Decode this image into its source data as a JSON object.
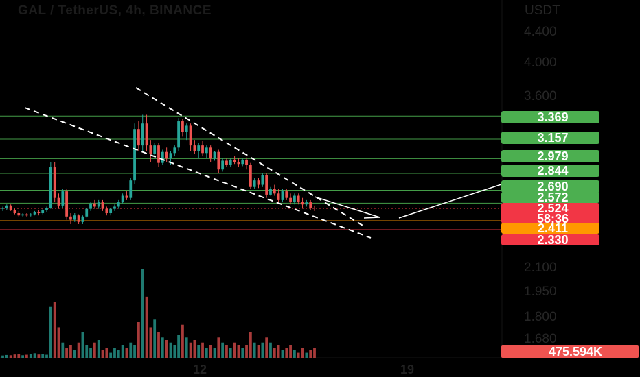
{
  "chart_data": {
    "type": "candlestick",
    "title": "GAL / TetherUS, 4h, BINANCE",
    "currency_label": "USDT",
    "y_ticks": [
      "4.400",
      "4.000",
      "3.600",
      "2.100",
      "1.950",
      "1.800",
      "1.680"
    ],
    "x_ticks": [
      "12",
      "19"
    ],
    "levels": [
      {
        "label": "3.369",
        "value": 3.369,
        "color": "#4caf50"
      },
      {
        "label": "3.157",
        "value": 3.157,
        "color": "#4caf50"
      },
      {
        "label": "2.979",
        "value": 2.979,
        "color": "#4caf50"
      },
      {
        "label": "2.844",
        "value": 2.844,
        "color": "#4caf50"
      },
      {
        "label": "2.690",
        "value": 2.69,
        "color": "#4caf50"
      },
      {
        "label": "2.572",
        "value": 2.572,
        "color": "#4caf50"
      },
      {
        "label": "2.411",
        "value": 2.411,
        "color": "#ff9800"
      },
      {
        "label": "2.330",
        "value": 2.33,
        "color": "#f23645"
      }
    ],
    "last_price": {
      "label": "2.524",
      "value": 2.524,
      "countdown": "58:36",
      "color": "#f23645"
    },
    "volume_label": "475.594K",
    "colors": {
      "up": "#26a69a",
      "down": "#ef5350",
      "up_volume": "#1f7a71",
      "down_volume": "#a83b3a"
    },
    "candles": [
      [
        2.52,
        2.54,
        2.5,
        2.53
      ],
      [
        2.53,
        2.56,
        2.51,
        2.55
      ],
      [
        2.55,
        2.56,
        2.5,
        2.51
      ],
      [
        2.51,
        2.52,
        2.47,
        2.48
      ],
      [
        2.48,
        2.5,
        2.45,
        2.46
      ],
      [
        2.46,
        2.48,
        2.45,
        2.47
      ],
      [
        2.47,
        2.48,
        2.45,
        2.46
      ],
      [
        2.46,
        2.48,
        2.45,
        2.47
      ],
      [
        2.47,
        2.5,
        2.46,
        2.49
      ],
      [
        2.49,
        2.51,
        2.46,
        2.48
      ],
      [
        2.48,
        2.52,
        2.47,
        2.51
      ],
      [
        2.51,
        2.54,
        2.49,
        2.53
      ],
      [
        2.53,
        2.95,
        2.52,
        2.9
      ],
      [
        2.9,
        2.95,
        2.58,
        2.62
      ],
      [
        2.62,
        2.66,
        2.52,
        2.55
      ],
      [
        2.55,
        2.7,
        2.53,
        2.68
      ],
      [
        2.68,
        2.7,
        2.42,
        2.45
      ],
      [
        2.45,
        2.48,
        2.38,
        2.42
      ],
      [
        2.42,
        2.48,
        2.4,
        2.46
      ],
      [
        2.46,
        2.47,
        2.38,
        2.4
      ],
      [
        2.4,
        2.46,
        2.38,
        2.45
      ],
      [
        2.45,
        2.53,
        2.44,
        2.52
      ],
      [
        2.52,
        2.58,
        2.5,
        2.57
      ],
      [
        2.57,
        2.6,
        2.52,
        2.54
      ],
      [
        2.54,
        2.6,
        2.52,
        2.58
      ],
      [
        2.58,
        2.6,
        2.5,
        2.52
      ],
      [
        2.52,
        2.54,
        2.46,
        2.48
      ],
      [
        2.48,
        2.53,
        2.46,
        2.52
      ],
      [
        2.52,
        2.56,
        2.5,
        2.54
      ],
      [
        2.54,
        2.6,
        2.52,
        2.58
      ],
      [
        2.58,
        2.66,
        2.57,
        2.64
      ],
      [
        2.64,
        2.68,
        2.6,
        2.62
      ],
      [
        2.62,
        2.8,
        2.6,
        2.78
      ],
      [
        2.78,
        3.3,
        2.75,
        3.25
      ],
      [
        3.25,
        3.32,
        3.05,
        3.1
      ],
      [
        3.1,
        3.38,
        3.05,
        3.3
      ],
      [
        3.3,
        3.38,
        3.05,
        3.1
      ],
      [
        3.1,
        3.15,
        2.95,
        3.02
      ],
      [
        3.02,
        3.12,
        2.98,
        3.1
      ],
      [
        3.1,
        3.12,
        2.9,
        2.94
      ],
      [
        2.94,
        3.06,
        2.92,
        3.04
      ],
      [
        3.04,
        3.08,
        2.95,
        2.98
      ],
      [
        2.98,
        3.05,
        2.92,
        3.03
      ],
      [
        3.03,
        3.1,
        3.0,
        3.08
      ],
      [
        3.08,
        3.35,
        3.05,
        3.32
      ],
      [
        3.32,
        3.34,
        3.18,
        3.22
      ],
      [
        3.22,
        3.3,
        3.15,
        3.28
      ],
      [
        3.28,
        3.3,
        3.05,
        3.1
      ],
      [
        3.1,
        3.15,
        3.02,
        3.05
      ],
      [
        3.05,
        3.12,
        2.98,
        3.1
      ],
      [
        3.1,
        3.14,
        3.0,
        3.03
      ],
      [
        3.03,
        3.1,
        2.98,
        3.08
      ],
      [
        3.08,
        3.1,
        2.95,
        2.98
      ],
      [
        2.98,
        3.05,
        2.96,
        3.04
      ],
      [
        3.04,
        3.06,
        2.85,
        2.88
      ],
      [
        2.88,
        2.98,
        2.86,
        2.96
      ],
      [
        2.96,
        2.98,
        2.9,
        2.92
      ],
      [
        2.92,
        2.98,
        2.9,
        2.97
      ],
      [
        2.97,
        3.0,
        2.93,
        2.95
      ],
      [
        2.95,
        2.98,
        2.9,
        2.93
      ],
      [
        2.93,
        2.98,
        2.91,
        2.97
      ],
      [
        2.97,
        2.99,
        2.88,
        2.92
      ],
      [
        2.92,
        2.94,
        2.7,
        2.72
      ],
      [
        2.72,
        2.8,
        2.7,
        2.78
      ],
      [
        2.78,
        2.8,
        2.71,
        2.74
      ],
      [
        2.74,
        2.85,
        2.72,
        2.83
      ],
      [
        2.83,
        2.85,
        2.62,
        2.65
      ],
      [
        2.65,
        2.72,
        2.64,
        2.7
      ],
      [
        2.7,
        2.74,
        2.64,
        2.66
      ],
      [
        2.66,
        2.7,
        2.58,
        2.6
      ],
      [
        2.6,
        2.7,
        2.58,
        2.68
      ],
      [
        2.68,
        2.7,
        2.6,
        2.62
      ],
      [
        2.62,
        2.66,
        2.56,
        2.58
      ],
      [
        2.58,
        2.66,
        2.56,
        2.64
      ],
      [
        2.64,
        2.66,
        2.56,
        2.58
      ],
      [
        2.58,
        2.62,
        2.53,
        2.56
      ],
      [
        2.56,
        2.6,
        2.54,
        2.58
      ],
      [
        2.58,
        2.6,
        2.51,
        2.53
      ],
      [
        2.53,
        2.55,
        2.5,
        2.524
      ]
    ],
    "volumes": [
      0.9,
      1.1,
      1.0,
      1.3,
      1.5,
      1.0,
      1.2,
      1.4,
      1.8,
      1.3,
      1.6,
      1.2,
      20,
      22,
      12,
      6,
      4,
      5,
      3,
      6,
      10,
      5,
      4,
      6,
      7,
      3,
      4,
      2,
      4,
      3,
      5,
      4,
      6,
      5,
      14,
      35,
      24,
      12,
      15,
      10,
      8,
      7,
      6,
      5,
      9,
      13,
      8,
      6,
      7,
      5,
      6,
      4,
      5,
      4,
      8,
      6,
      5,
      4,
      6,
      5,
      4,
      5,
      10,
      6,
      5,
      6,
      8,
      6,
      4,
      5,
      3,
      4,
      5,
      3,
      2,
      4,
      2,
      3,
      4
    ]
  }
}
